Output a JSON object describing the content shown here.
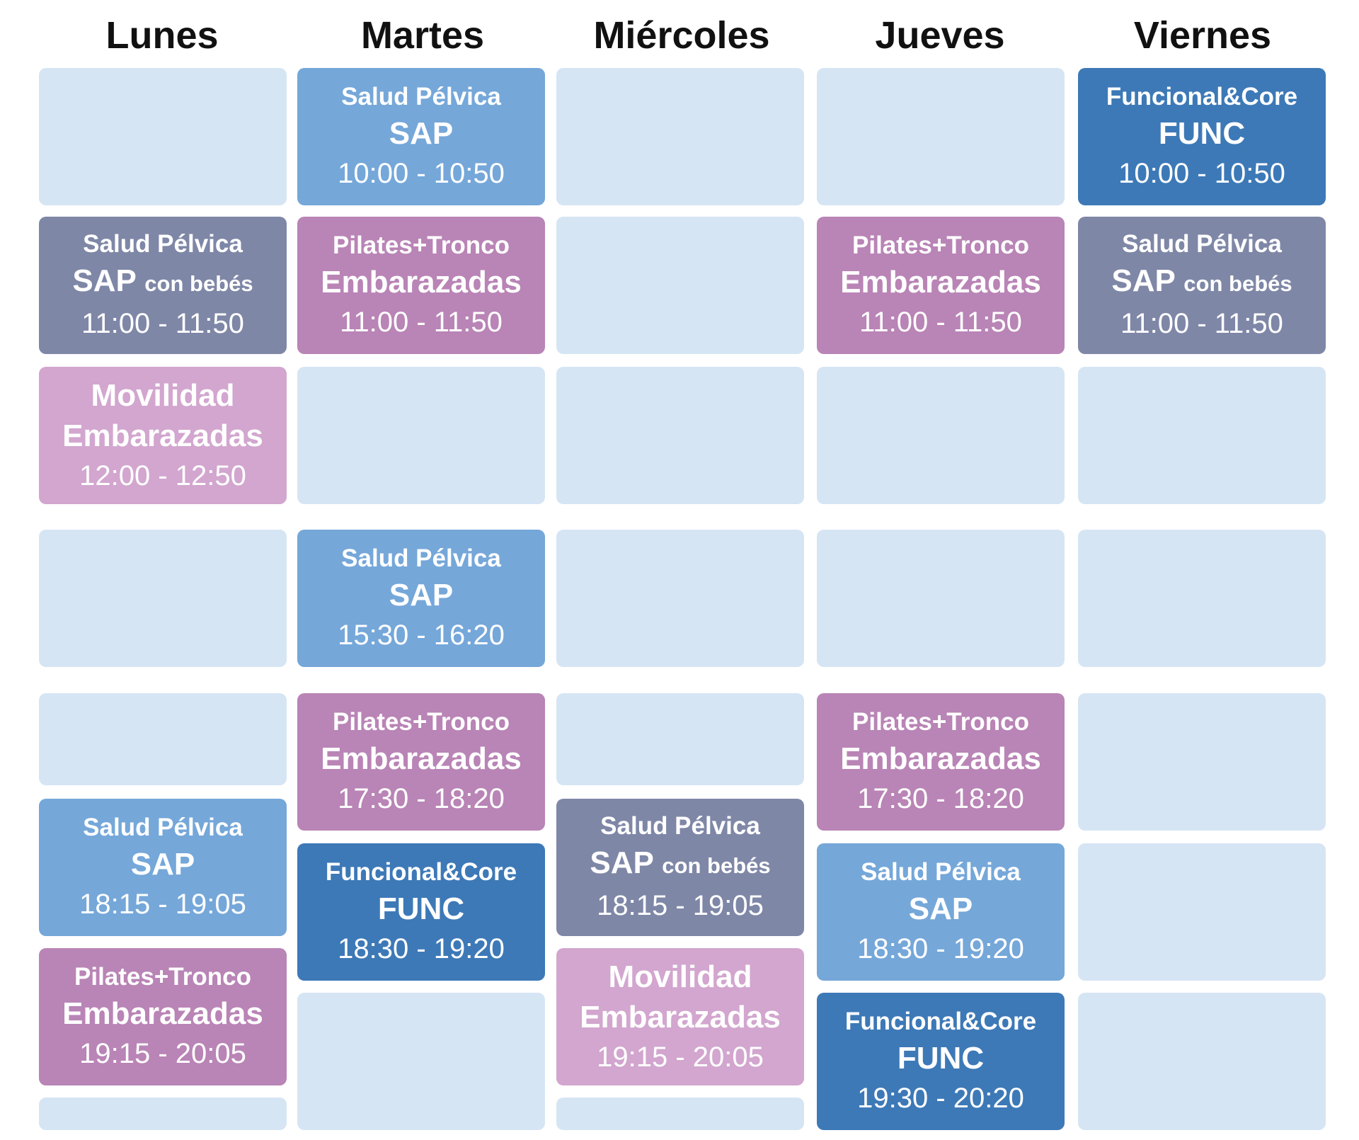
{
  "days": [
    "Lunes",
    "Martes",
    "Miércoles",
    "Jueves",
    "Viernes"
  ],
  "classes": {
    "tue_1000": {
      "category": "Salud Pélvica",
      "code": "SAP",
      "time": "10:00 - 10:50"
    },
    "fri_1000": {
      "category": "Funcional&Core",
      "code": "FUNC",
      "time": "10:00 - 10:50"
    },
    "mon_1100": {
      "category": "Salud Pélvica",
      "code": "SAP",
      "suffix": "con bebés",
      "time": "11:00 - 11:50"
    },
    "tue_1100": {
      "category": "Pilates+Tronco",
      "code": "Embarazadas",
      "time": "11:00 - 11:50"
    },
    "thu_1100": {
      "category": "Pilates+Tronco",
      "code": "Embarazadas",
      "time": "11:00 - 11:50"
    },
    "fri_1100": {
      "category": "Salud Pélvica",
      "code": "SAP",
      "suffix": "con bebés",
      "time": "11:00 - 11:50"
    },
    "mon_1200": {
      "category": "Movilidad",
      "code": "Embarazadas",
      "time": "12:00 - 12:50"
    },
    "tue_1530": {
      "category": "Salud Pélvica",
      "code": "SAP",
      "time": "15:30 - 16:20"
    },
    "tue_1730": {
      "category": "Pilates+Tronco",
      "code": "Embarazadas",
      "time": "17:30 - 18:20"
    },
    "thu_1730": {
      "category": "Pilates+Tronco",
      "code": "Embarazadas",
      "time": "17:30 - 18:20"
    },
    "mon_1815": {
      "category": "Salud Pélvica",
      "code": "SAP",
      "time": "18:15 - 19:05"
    },
    "wed_1815": {
      "category": "Salud Pélvica",
      "code": "SAP",
      "suffix": "con bebés",
      "time": "18:15 - 19:05"
    },
    "tue_1830": {
      "category": "Funcional&Core",
      "code": "FUNC",
      "time": "18:30 - 19:20"
    },
    "thu_1830": {
      "category": "Salud Pélvica",
      "code": "SAP",
      "time": "18:30 - 19:20"
    },
    "mon_1915": {
      "category": "Pilates+Tronco",
      "code": "Embarazadas",
      "time": "19:15 - 20:05"
    },
    "wed_1915": {
      "category": "Movilidad",
      "code": "Embarazadas",
      "time": "19:15 - 20:05"
    },
    "thu_1930": {
      "category": "Funcional&Core",
      "code": "FUNC",
      "time": "19:30 - 20:20"
    }
  },
  "colors": {
    "empty": "#d6e5f4",
    "salud_pelvica": "#75a7d9",
    "funcional_core": "#3d79b7",
    "con_bebes": "#7f87a7",
    "pilates_tronco": "#b984b6",
    "movilidad": "#d2a6cf"
  }
}
